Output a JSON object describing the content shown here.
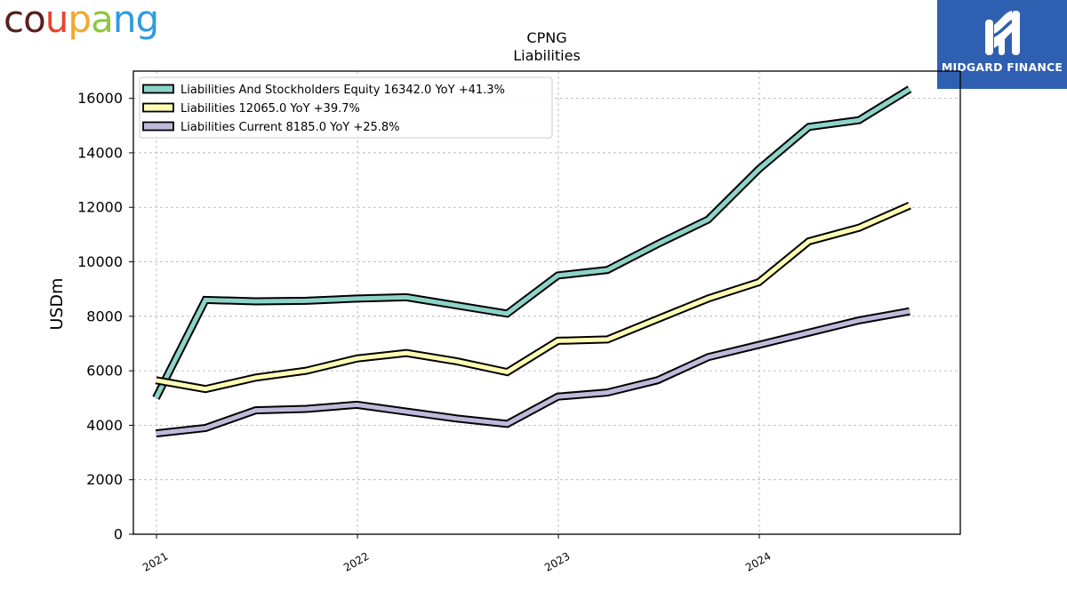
{
  "brand": {
    "company_logo_text": "coupang",
    "company_logo_colors": [
      "#5a1e1e",
      "#5a1e1e",
      "#e8432e",
      "#f0a830",
      "#8fc63f",
      "#2e9be0",
      "#2e9be0"
    ],
    "publisher_name": "MIDGARD FINANCE",
    "publisher_color": "#2f5fb0"
  },
  "chart_data": {
    "type": "line",
    "title": "CPNG",
    "subtitle": "Liabilities",
    "ylabel": "USDm",
    "xlabel": "",
    "ylim": [
      0,
      17000
    ],
    "yticks": [
      0,
      2000,
      4000,
      6000,
      8000,
      10000,
      12000,
      14000,
      16000
    ],
    "xlim": [
      "2020-11-20",
      "2024-12-31"
    ],
    "xticks": [
      {
        "date": "2021-01-01",
        "label": "2021"
      },
      {
        "date": "2022-01-01",
        "label": "2022"
      },
      {
        "date": "2023-01-01",
        "label": "2023"
      },
      {
        "date": "2024-01-01",
        "label": "2024"
      }
    ],
    "x": [
      "2020-12-31",
      "2021-03-31",
      "2021-06-30",
      "2021-09-30",
      "2021-12-31",
      "2022-03-31",
      "2022-06-30",
      "2022-09-30",
      "2022-12-31",
      "2023-03-31",
      "2023-06-30",
      "2023-09-30",
      "2023-12-31",
      "2024-03-31",
      "2024-06-30",
      "2024-09-30"
    ],
    "grid": true,
    "legend_position": "top-left",
    "series": [
      {
        "name": "Liabilities And Stockholders Equity  16342.0 YoY +41.3%",
        "color": "#8dd3c7",
        "values": [
          5000,
          8600,
          8550,
          8570,
          8650,
          8700,
          8400,
          8100,
          9500,
          9700,
          10650,
          11550,
          13400,
          14950,
          15200,
          16342
        ]
      },
      {
        "name": "Liabilities  12065.0 YoY +39.7%",
        "color": "#ffffb3",
        "values": [
          5650,
          5330,
          5750,
          6000,
          6450,
          6650,
          6350,
          5950,
          7100,
          7150,
          7900,
          8650,
          9250,
          10750,
          11250,
          12065
        ]
      },
      {
        "name": "Liabilities Current  8185.0 YoY +25.8%",
        "color": "#bebada",
        "values": [
          3700,
          3900,
          4550,
          4600,
          4750,
          4500,
          4250,
          4050,
          5050,
          5200,
          5650,
          6500,
          6950,
          7400,
          7850,
          8185
        ]
      }
    ]
  }
}
